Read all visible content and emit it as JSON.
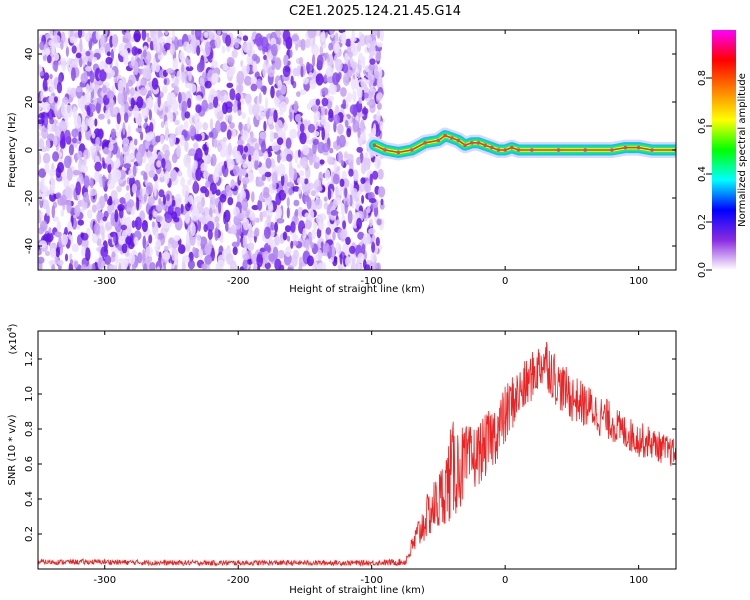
{
  "title": "C2E1.2025.124.21.45.G14",
  "chart_data": [
    {
      "type": "heatmap",
      "name": "spectrogram",
      "xlabel": "Height of straight line (km)",
      "ylabel": "Frequency (Hz)",
      "xlim": [
        -350,
        128
      ],
      "ylim": [
        -50,
        50
      ],
      "x_ticks": [
        "-300",
        "-200",
        "-100",
        "0",
        "100"
      ],
      "y_ticks": [
        "40",
        "20",
        "0",
        "-20",
        "-40"
      ],
      "colorbar": {
        "label": "Normalized spectral amplitude",
        "range": [
          0,
          1
        ],
        "ticks": [
          "0.0",
          "0.2",
          "0.4",
          "0.6",
          "0.8"
        ],
        "colors": [
          "#ffffff",
          "#8a2be2",
          "#0000ff",
          "#00ffff",
          "#00ff00",
          "#ffff00",
          "#ff8000",
          "#ff0000",
          "#ff00ff"
        ]
      },
      "noise_region_x": [
        -350,
        -92
      ],
      "signal_trace": {
        "x": [
          -98,
          -90,
          -80,
          -70,
          -60,
          -50,
          -45,
          -40,
          -35,
          -30,
          -25,
          -20,
          -15,
          -10,
          -5,
          0,
          5,
          10,
          20,
          40,
          60,
          80,
          90,
          100,
          110,
          128
        ],
        "y": [
          2,
          0,
          -1,
          0,
          3,
          4,
          6,
          5,
          4,
          2,
          3,
          3,
          2,
          1,
          0,
          0,
          1,
          0,
          0,
          0,
          0,
          0,
          1,
          1,
          0,
          0
        ]
      }
    },
    {
      "type": "line",
      "name": "snr",
      "xlabel": "Height of straight line (km)",
      "ylabel": "SNR (10 * v/v)",
      "scale_label": "(x10",
      "scale_exponent": "4",
      "xlim": [
        -350,
        128
      ],
      "ylim": [
        0,
        1.36
      ],
      "x_ticks": [
        "-300",
        "-200",
        "-100",
        "0",
        "100"
      ],
      "y_ticks": [
        "1.2",
        "1.0",
        "0.8",
        "0.6",
        "0.4",
        "0.2"
      ],
      "color": "#ee2222",
      "series": [
        {
          "x": [
            -350,
            -300,
            -250,
            -200,
            -150,
            -100,
            -75,
            -70,
            -65,
            -60,
            -55,
            -50,
            -45,
            -40,
            -35,
            -30,
            -25,
            -20,
            -15,
            -10,
            -5,
            0,
            5,
            10,
            15,
            20,
            25,
            30,
            35,
            40,
            45,
            50,
            55,
            60,
            65,
            70,
            75,
            80,
            85,
            90,
            95,
            100,
            105,
            110,
            115,
            120,
            128
          ],
          "y": [
            0.04,
            0.04,
            0.035,
            0.035,
            0.035,
            0.035,
            0.04,
            0.12,
            0.2,
            0.28,
            0.34,
            0.38,
            0.46,
            0.55,
            0.58,
            0.6,
            0.62,
            0.66,
            0.7,
            0.75,
            0.8,
            0.87,
            0.95,
            1.0,
            1.04,
            1.1,
            1.15,
            1.2,
            1.13,
            1.05,
            1.02,
            0.98,
            0.96,
            0.93,
            0.92,
            0.88,
            0.86,
            0.84,
            0.8,
            0.78,
            0.76,
            0.74,
            0.73,
            0.72,
            0.7,
            0.68,
            0.66
          ],
          "noise_amplitude": [
            0.015,
            0.015,
            0.015,
            0.015,
            0.015,
            0.015,
            0.02,
            0.06,
            0.1,
            0.12,
            0.15,
            0.18,
            0.2,
            0.3,
            0.25,
            0.22,
            0.2,
            0.18,
            0.18,
            0.18,
            0.18,
            0.18,
            0.16,
            0.15,
            0.15,
            0.14,
            0.14,
            0.15,
            0.16,
            0.14,
            0.14,
            0.14,
            0.13,
            0.13,
            0.12,
            0.12,
            0.12,
            0.11,
            0.11,
            0.1,
            0.1,
            0.1,
            0.1,
            0.09,
            0.09,
            0.09,
            0.08
          ]
        }
      ]
    }
  ]
}
